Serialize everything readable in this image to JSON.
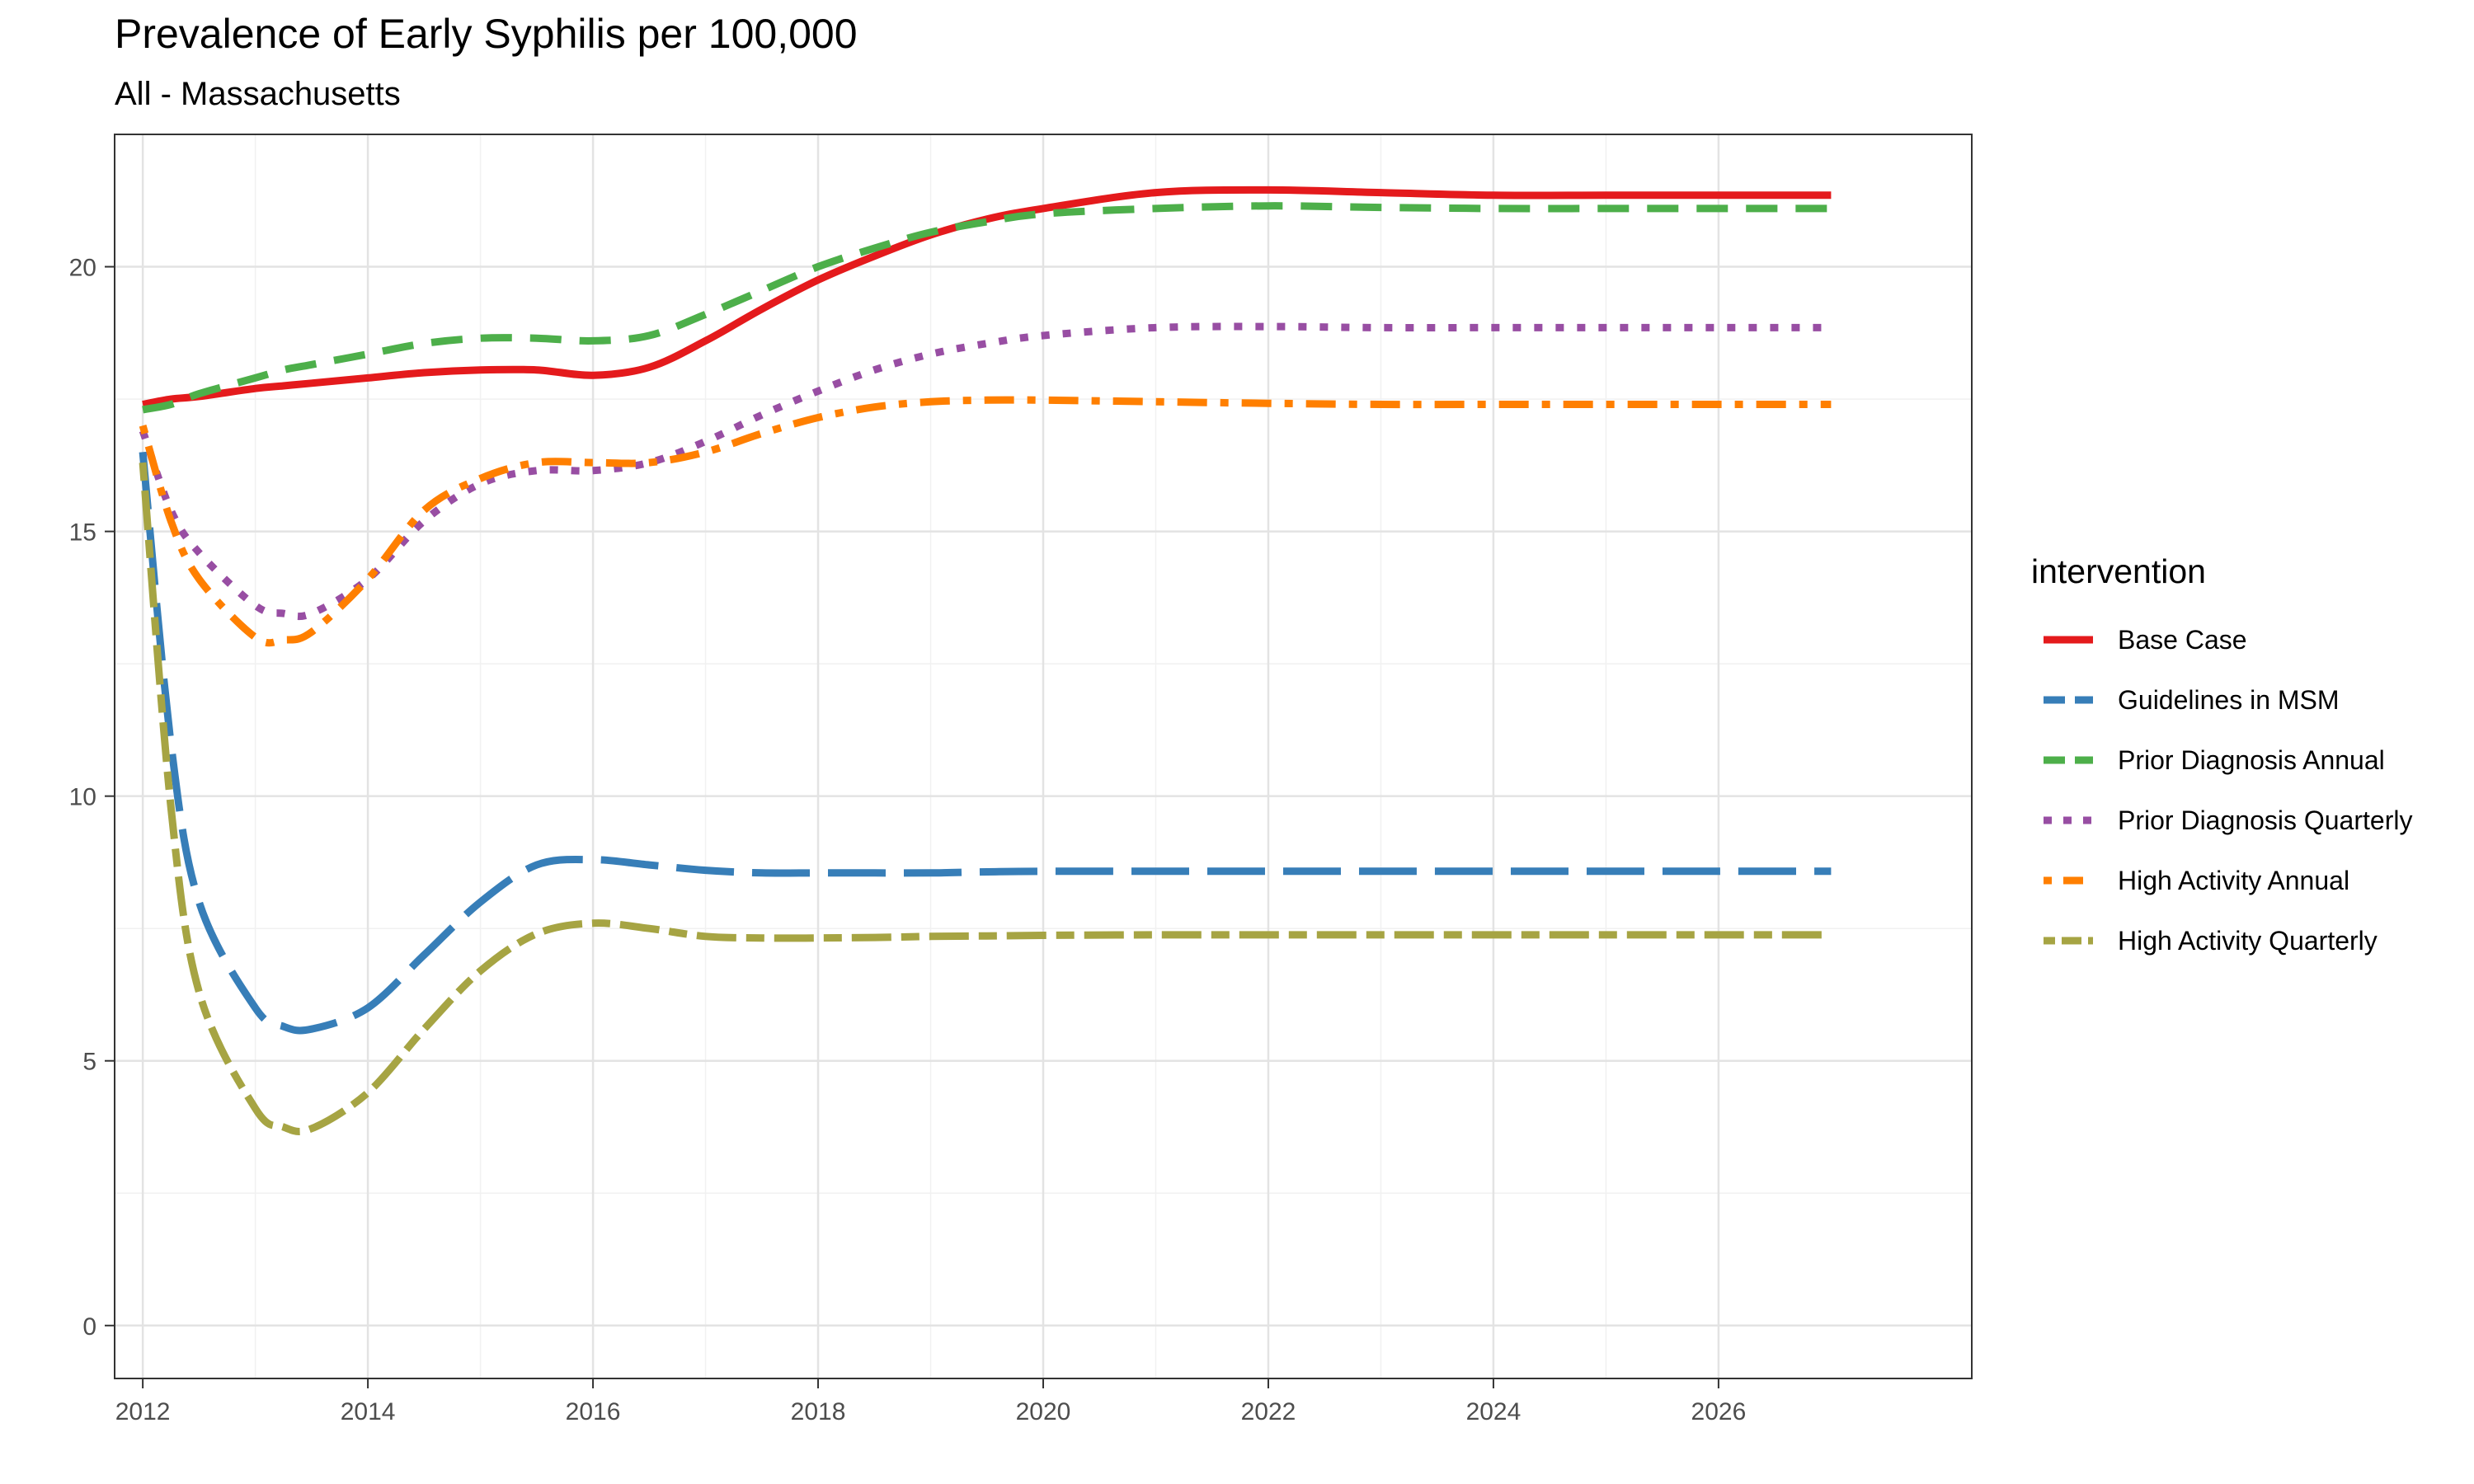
{
  "chart_data": {
    "type": "line",
    "title": "Prevalence of Early Syphilis per 100,000",
    "subtitle": "All - Massachusetts",
    "xlabel": "",
    "ylabel": "",
    "xlim": [
      2011.75,
      2028.25
    ],
    "ylim": [
      -1,
      22.5
    ],
    "x_ticks": [
      2012,
      2014,
      2016,
      2018,
      2020,
      2022,
      2024,
      2026
    ],
    "y_ticks": [
      0,
      5,
      10,
      15,
      20
    ],
    "grid": true,
    "legend_title": "intervention",
    "legend_position": "right",
    "x": [
      2012,
      2012.25,
      2012.5,
      2013,
      2013.25,
      2013.5,
      2014,
      2014.5,
      2015,
      2015.5,
      2016,
      2016.5,
      2017,
      2017.5,
      2018,
      2018.5,
      2019,
      2019.5,
      2020,
      2021,
      2022,
      2023,
      2024,
      2025,
      2026,
      2027
    ],
    "series": [
      {
        "name": "Base Case",
        "color": "#e41a1c",
        "dash": "solid",
        "values": [
          17.4,
          17.5,
          17.55,
          17.7,
          17.75,
          17.8,
          17.9,
          18.0,
          18.05,
          18.05,
          17.95,
          18.1,
          18.6,
          19.2,
          19.75,
          20.2,
          20.6,
          20.9,
          21.1,
          21.4,
          21.45,
          21.4,
          21.35,
          21.35,
          21.35,
          21.35
        ]
      },
      {
        "name": "Guidelines in MSM",
        "color": "#377eb8",
        "dash": "longdash",
        "values": [
          16.5,
          11.0,
          8.0,
          6.0,
          5.65,
          5.6,
          6.0,
          7.0,
          8.0,
          8.7,
          8.8,
          8.7,
          8.6,
          8.55,
          8.55,
          8.55,
          8.55,
          8.57,
          8.58,
          8.58,
          8.58,
          8.58,
          8.58,
          8.58,
          8.58,
          8.58
        ]
      },
      {
        "name": "Prior Diagnosis Annual",
        "color": "#4daf4a",
        "dash": "dashed",
        "values": [
          17.3,
          17.4,
          17.6,
          17.9,
          18.05,
          18.15,
          18.35,
          18.55,
          18.65,
          18.65,
          18.6,
          18.7,
          19.1,
          19.55,
          20.0,
          20.35,
          20.65,
          20.85,
          21.0,
          21.1,
          21.15,
          21.12,
          21.1,
          21.1,
          21.1,
          21.1
        ]
      },
      {
        "name": "Prior Diagnosis Quarterly",
        "color": "#984ea3",
        "dash": "dotted",
        "values": [
          16.9,
          15.4,
          14.6,
          13.6,
          13.45,
          13.45,
          14.1,
          15.2,
          15.9,
          16.15,
          16.15,
          16.3,
          16.7,
          17.2,
          17.65,
          18.05,
          18.35,
          18.55,
          18.7,
          18.85,
          18.87,
          18.85,
          18.85,
          18.85,
          18.85,
          18.85
        ]
      },
      {
        "name": "High Activity Annual",
        "color": "#ff7f00",
        "dash": "dotdash",
        "values": [
          17.0,
          15.2,
          14.1,
          13.0,
          12.95,
          13.1,
          14.1,
          15.4,
          16.0,
          16.3,
          16.3,
          16.3,
          16.5,
          16.85,
          17.15,
          17.35,
          17.45,
          17.48,
          17.48,
          17.45,
          17.42,
          17.4,
          17.4,
          17.4,
          17.4,
          17.4
        ]
      },
      {
        "name": "High Activity Quarterly",
        "color": "#a6a443",
        "dash": "twodash",
        "values": [
          16.3,
          9.8,
          6.3,
          4.1,
          3.75,
          3.72,
          4.4,
          5.6,
          6.7,
          7.4,
          7.6,
          7.5,
          7.35,
          7.32,
          7.32,
          7.33,
          7.35,
          7.36,
          7.37,
          7.38,
          7.38,
          7.38,
          7.38,
          7.38,
          7.38,
          7.38
        ]
      }
    ]
  }
}
